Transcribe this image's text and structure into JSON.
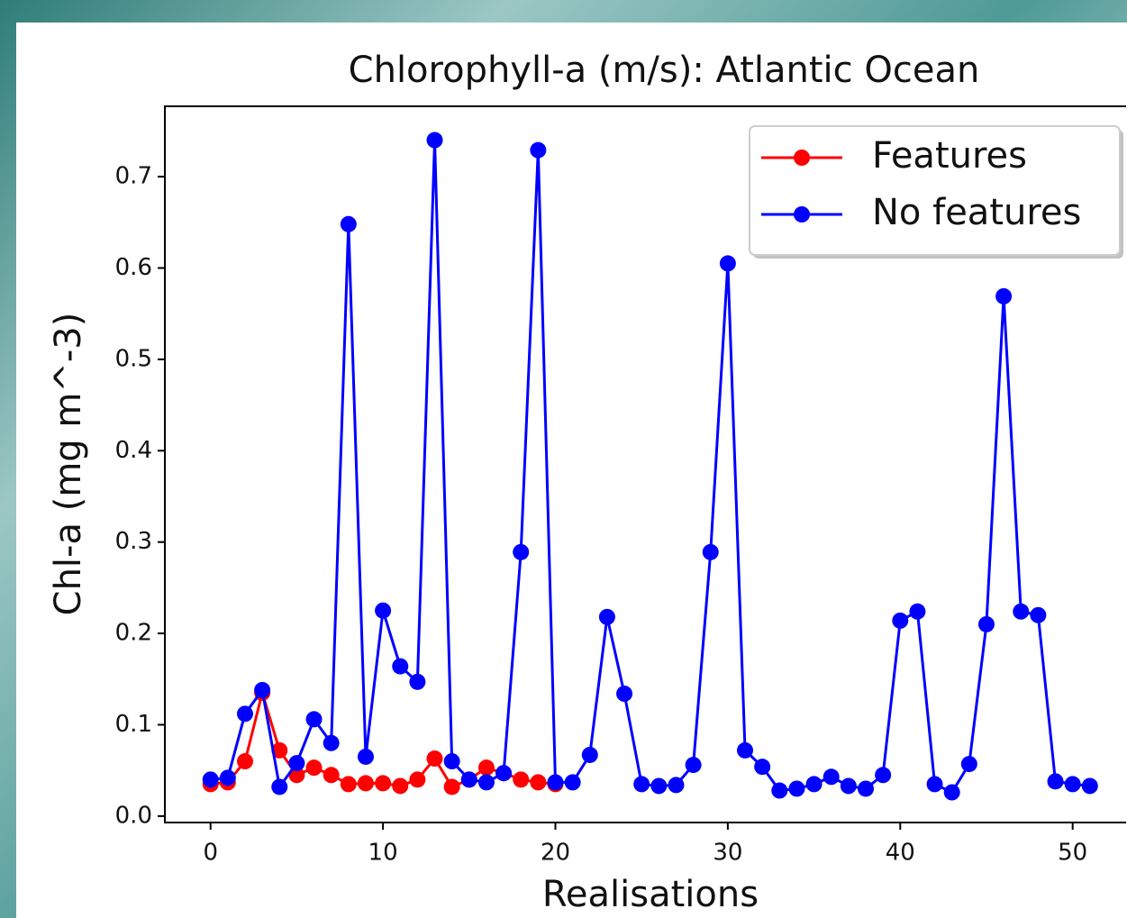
{
  "chart_data": {
    "type": "line",
    "title": "Chlorophyll-a (m/s): Atlantic Ocean",
    "x_label": "Realisations",
    "y_label": "Chl-a (mg m^-3)",
    "xlim": [
      -2.65,
      53.1
    ],
    "ylim": [
      -0.007,
      0.777
    ],
    "xticks": [
      0,
      10,
      20,
      30,
      40,
      50
    ],
    "yticks": [
      {
        "value": 0,
        "label": "0.0"
      },
      0.1,
      0.2,
      0.3,
      0.4,
      0.5,
      0.6,
      0.7
    ],
    "legend": "upper right",
    "series": [
      {
        "name": "Features",
        "color": "#ff0000",
        "x": [
          0,
          1,
          2,
          3,
          4,
          5,
          6,
          7,
          8,
          9,
          10,
          11,
          12,
          13,
          14,
          15,
          16,
          17,
          18,
          19,
          20
        ],
        "values": [
          0.035,
          0.037,
          0.06,
          0.135,
          0.072,
          0.045,
          0.053,
          0.045,
          0.035,
          0.036,
          0.036,
          0.033,
          0.04,
          0.063,
          0.032,
          0.04,
          0.053,
          0.047,
          0.04,
          0.037,
          0.035
        ]
      },
      {
        "name": "No features",
        "color": "#0000ff",
        "x": [
          0,
          1,
          2,
          3,
          4,
          5,
          6,
          7,
          8,
          9,
          10,
          11,
          12,
          13,
          14,
          15,
          16,
          17,
          18,
          19,
          20,
          21,
          22,
          23,
          24,
          25,
          26,
          27,
          28,
          29,
          30,
          31,
          32,
          33,
          34,
          35,
          36,
          37,
          38,
          39,
          40,
          41,
          42,
          43,
          44,
          45,
          46,
          47,
          48,
          49,
          50,
          51
        ],
        "values": [
          0.04,
          0.042,
          0.112,
          0.138,
          0.032,
          0.058,
          0.106,
          0.08,
          0.648,
          0.065,
          0.225,
          0.164,
          0.147,
          0.74,
          0.06,
          0.04,
          0.037,
          0.047,
          0.289,
          0.729,
          0.037,
          0.037,
          0.067,
          0.218,
          0.134,
          0.035,
          0.033,
          0.034,
          0.056,
          0.289,
          0.605,
          0.072,
          0.054,
          0.028,
          0.03,
          0.035,
          0.043,
          0.033,
          0.03,
          0.045,
          0.214,
          0.224,
          0.035,
          0.026,
          0.057,
          0.21,
          0.569,
          0.224,
          0.22,
          0.038,
          0.035,
          0.033
        ]
      }
    ]
  }
}
